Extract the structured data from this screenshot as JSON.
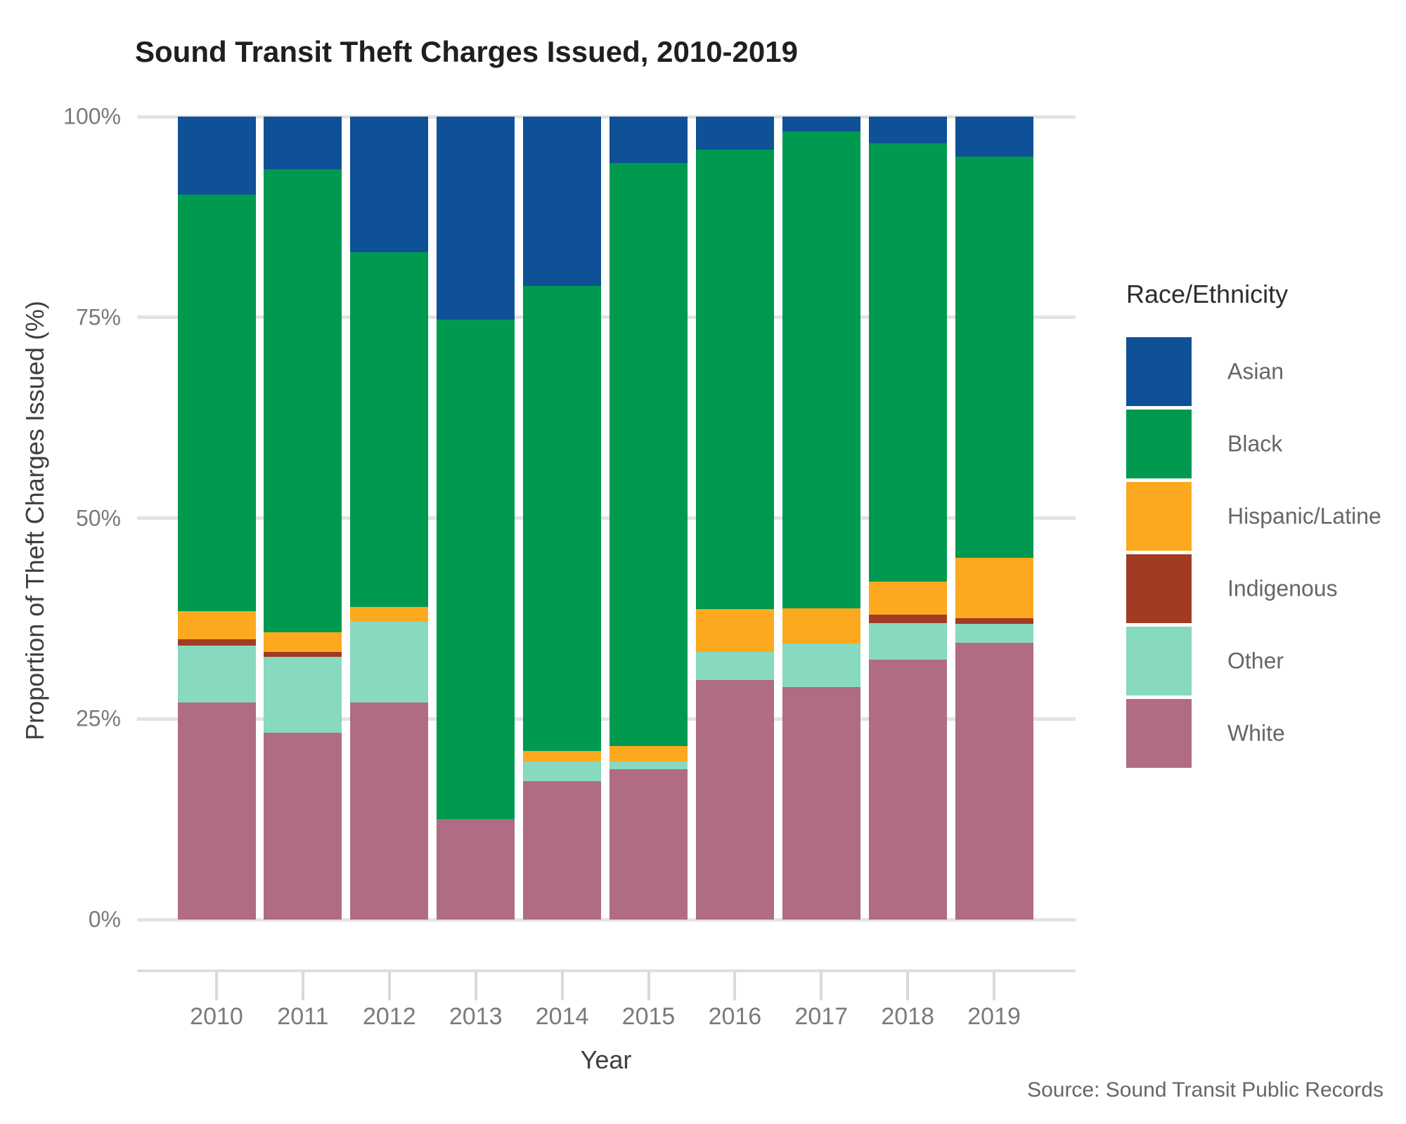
{
  "title": "Sound Transit Theft Charges Issued, 2010-2019",
  "source_note": "Source: Sound Transit Public Records",
  "y_axis": {
    "title": "Proportion of Theft Charges Issued (%)",
    "tick_labels": [
      "100%",
      "75%",
      "50%",
      "25%",
      "0%"
    ],
    "tick_values": [
      100,
      75,
      50,
      25,
      0
    ]
  },
  "x_axis": {
    "title": "Year",
    "tick_labels": [
      "2010",
      "2011",
      "2012",
      "2013",
      "2014",
      "2015",
      "2016",
      "2017",
      "2018",
      "2019"
    ]
  },
  "legend": {
    "title": "Race/Ethnicity",
    "entries": [
      {
        "label": "Asian",
        "color": "#0e5197"
      },
      {
        "label": "Black",
        "color": "#009950"
      },
      {
        "label": "Hispanic/Latine",
        "color": "#fca91f"
      },
      {
        "label": "Indigenous",
        "color": "#a23b23"
      },
      {
        "label": "Other",
        "color": "#87d9bf"
      },
      {
        "label": "White",
        "color": "#b06c82"
      }
    ]
  },
  "chart_data": {
    "type": "bar",
    "stacked": true,
    "normalized": "percent",
    "title": "Sound Transit Theft Charges Issued, 2010-2019",
    "xlabel": "Year",
    "ylabel": "Proportion of Theft Charges Issued (%)",
    "ylim": [
      0,
      100
    ],
    "grid": "horizontal",
    "legend_position": "right",
    "categories": [
      2010,
      2011,
      2012,
      2013,
      2014,
      2015,
      2016,
      2017,
      2018,
      2019
    ],
    "stack_order_bottom_to_top": [
      "White",
      "Other",
      "Indigenous",
      "Hispanic/Latine",
      "Black",
      "Asian"
    ],
    "series": [
      {
        "name": "Asian",
        "color": "#0e5197",
        "values": [
          9.7,
          6.6,
          16.9,
          25.3,
          21.1,
          5.8,
          4.1,
          1.8,
          3.3,
          5.0
        ]
      },
      {
        "name": "Black",
        "color": "#009950",
        "values": [
          51.9,
          57.6,
          44.2,
          62.2,
          57.9,
          72.6,
          57.2,
          59.4,
          54.6,
          49.9
        ]
      },
      {
        "name": "Hispanic/Latine",
        "color": "#fca91f",
        "values": [
          3.5,
          2.5,
          1.8,
          0.0,
          1.3,
          1.9,
          5.4,
          4.4,
          4.1,
          7.6
        ]
      },
      {
        "name": "Indigenous",
        "color": "#a23b23",
        "values": [
          0.8,
          0.6,
          0.0,
          0.0,
          0.0,
          0.0,
          0.0,
          0.0,
          1.1,
          0.7
        ]
      },
      {
        "name": "Other",
        "color": "#87d9bf",
        "values": [
          7.1,
          9.4,
          10.1,
          0.0,
          2.5,
          1.0,
          3.5,
          5.4,
          4.5,
          2.3
        ]
      },
      {
        "name": "White",
        "color": "#b06c82",
        "values": [
          27.0,
          23.3,
          27.0,
          12.5,
          17.2,
          18.7,
          29.8,
          29.0,
          32.4,
          34.5
        ]
      }
    ]
  }
}
